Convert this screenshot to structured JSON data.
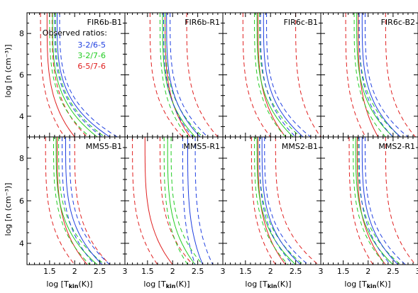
{
  "figure": {
    "ylabel": "log [n (cm⁻³)]",
    "xlabel": "log [Tkin(K)]",
    "xlabel_main": "log [T",
    "xlabel_sub": "kin",
    "xlabel_end": "(K)]"
  },
  "legend": {
    "title": "Observed ratios:",
    "entries": [
      {
        "label": "3-2/6-5",
        "color": "#1f3fe0"
      },
      {
        "label": "3-2/7-6",
        "color": "#22cc22"
      },
      {
        "label": "6-5/7-6",
        "color": "#e02020"
      }
    ]
  },
  "chart_data": {
    "type": "line",
    "xlim": [
      1.0,
      3.0
    ],
    "ylim": [
      3.0,
      9.0
    ],
    "xticks": [
      1.5,
      2.0,
      2.5,
      3.0
    ],
    "xtick_labels": [
      "1.5",
      "2",
      "2.5",
      "3"
    ],
    "yticks": [
      4,
      6,
      8
    ],
    "ytick_labels": [
      "4",
      "6",
      "8"
    ],
    "line_styles": {
      "observed": "solid",
      "error_bounds": "dashed"
    },
    "panels": [
      {
        "name": "FIR6b-B1",
        "xlim": [
          1.05,
          3.0
        ],
        "curves": [
          {
            "ratio": "6-5/7-6",
            "color": "#e02020",
            "style": "dashed",
            "x0": 1.32,
            "knee": 1.8
          },
          {
            "ratio": "6-5/7-6",
            "color": "#e02020",
            "style": "solid",
            "x0": 1.45,
            "knee": 2.0
          },
          {
            "ratio": "6-5/7-6",
            "color": "#e02020",
            "style": "dashed",
            "x0": 1.55,
            "knee": 2.25
          },
          {
            "ratio": "3-2/7-6",
            "color": "#22cc22",
            "style": "dashed",
            "x0": 1.5,
            "knee": 2.3
          },
          {
            "ratio": "3-2/7-6",
            "color": "#22cc22",
            "style": "solid",
            "x0": 1.56,
            "knee": 2.45
          },
          {
            "ratio": "3-2/7-6",
            "color": "#22cc22",
            "style": "dashed",
            "x0": 1.62,
            "knee": 2.6
          },
          {
            "ratio": "3-2/6-5",
            "color": "#1f3fe0",
            "style": "dashed",
            "x0": 1.6,
            "knee": 2.55
          },
          {
            "ratio": "3-2/6-5",
            "color": "#1f3fe0",
            "style": "solid",
            "x0": 1.65,
            "knee": 2.7
          },
          {
            "ratio": "3-2/6-5",
            "color": "#1f3fe0",
            "style": "dashed",
            "x0": 1.7,
            "knee": 2.85
          }
        ]
      },
      {
        "name": "FIR6b-R1",
        "xlim": [
          1.05,
          3.0
        ],
        "curves": [
          {
            "ratio": "6-5/7-6",
            "color": "#e02020",
            "style": "dashed",
            "x0": 1.55,
            "knee": 2.2
          },
          {
            "ratio": "6-5/7-6",
            "color": "#e02020",
            "style": "solid",
            "x0": 1.85,
            "knee": 2.35
          },
          {
            "ratio": "6-5/7-6",
            "color": "#e02020",
            "style": "dashed",
            "x0": 2.28,
            "knee": 2.9
          },
          {
            "ratio": "3-2/7-6",
            "color": "#22cc22",
            "style": "dashed",
            "x0": 1.75,
            "knee": 2.3
          },
          {
            "ratio": "3-2/7-6",
            "color": "#22cc22",
            "style": "solid",
            "x0": 1.8,
            "knee": 2.45
          },
          {
            "ratio": "3-2/7-6",
            "color": "#22cc22",
            "style": "dashed",
            "x0": 1.85,
            "knee": 2.6
          },
          {
            "ratio": "3-2/6-5",
            "color": "#1f3fe0",
            "style": "dashed",
            "x0": 1.82,
            "knee": 2.4
          },
          {
            "ratio": "3-2/6-5",
            "color": "#1f3fe0",
            "style": "solid",
            "x0": 1.88,
            "knee": 2.55
          },
          {
            "ratio": "3-2/6-5",
            "color": "#1f3fe0",
            "style": "dashed",
            "x0": 1.95,
            "knee": 2.7
          }
        ]
      },
      {
        "name": "FIR6c-B1",
        "xlim": [
          1.05,
          3.0
        ],
        "curves": [
          {
            "ratio": "6-5/7-6",
            "color": "#e02020",
            "style": "dashed",
            "x0": 1.45,
            "knee": 2.0
          },
          {
            "ratio": "6-5/7-6",
            "color": "#e02020",
            "style": "solid",
            "x0": 1.75,
            "knee": 2.3
          },
          {
            "ratio": "6-5/7-6",
            "color": "#e02020",
            "style": "dashed",
            "x0": 2.5,
            "knee": 3.0
          },
          {
            "ratio": "3-2/7-6",
            "color": "#22cc22",
            "style": "dashed",
            "x0": 1.68,
            "knee": 2.3
          },
          {
            "ratio": "3-2/7-6",
            "color": "#22cc22",
            "style": "solid",
            "x0": 1.73,
            "knee": 2.45
          },
          {
            "ratio": "3-2/7-6",
            "color": "#22cc22",
            "style": "dashed",
            "x0": 1.78,
            "knee": 2.6
          },
          {
            "ratio": "3-2/6-5",
            "color": "#1f3fe0",
            "style": "dashed",
            "x0": 1.8,
            "knee": 2.5
          },
          {
            "ratio": "3-2/6-5",
            "color": "#1f3fe0",
            "style": "solid",
            "x0": 1.86,
            "knee": 2.65
          },
          {
            "ratio": "3-2/6-5",
            "color": "#1f3fe0",
            "style": "dashed",
            "x0": 1.92,
            "knee": 2.8
          }
        ]
      },
      {
        "name": "FIR6c-B2",
        "xlim": [
          1.05,
          3.0
        ],
        "curves": [
          {
            "ratio": "6-5/7-6",
            "color": "#e02020",
            "style": "dashed",
            "x0": 1.55,
            "knee": 1.95
          },
          {
            "ratio": "6-5/7-6",
            "color": "#e02020",
            "style": "solid",
            "x0": 1.8,
            "knee": 2.2
          },
          {
            "ratio": "6-5/7-6",
            "color": "#e02020",
            "style": "dashed",
            "x0": 2.35,
            "knee": 2.95
          },
          {
            "ratio": "3-2/7-6",
            "color": "#22cc22",
            "style": "dashed",
            "x0": 1.72,
            "knee": 2.35
          },
          {
            "ratio": "3-2/7-6",
            "color": "#22cc22",
            "style": "solid",
            "x0": 1.77,
            "knee": 2.5
          },
          {
            "ratio": "3-2/7-6",
            "color": "#22cc22",
            "style": "dashed",
            "x0": 1.82,
            "knee": 2.65
          },
          {
            "ratio": "3-2/6-5",
            "color": "#1f3fe0",
            "style": "dashed",
            "x0": 1.82,
            "knee": 2.5
          },
          {
            "ratio": "3-2/6-5",
            "color": "#1f3fe0",
            "style": "solid",
            "x0": 1.88,
            "knee": 2.65
          },
          {
            "ratio": "3-2/6-5",
            "color": "#1f3fe0",
            "style": "dashed",
            "x0": 1.94,
            "knee": 2.8
          }
        ]
      },
      {
        "name": "MMS5-B1",
        "xlim": [
          1.05,
          3.0
        ],
        "curves": [
          {
            "ratio": "6-5/7-6",
            "color": "#e02020",
            "style": "dashed",
            "x0": 1.42,
            "knee": 2.0
          },
          {
            "ratio": "6-5/7-6",
            "color": "#e02020",
            "style": "solid",
            "x0": 1.65,
            "knee": 2.25
          },
          {
            "ratio": "6-5/7-6",
            "color": "#e02020",
            "style": "dashed",
            "x0": 2.0,
            "knee": 2.7
          },
          {
            "ratio": "3-2/7-6",
            "color": "#22cc22",
            "style": "dashed",
            "x0": 1.58,
            "knee": 2.3
          },
          {
            "ratio": "3-2/7-6",
            "color": "#22cc22",
            "style": "solid",
            "x0": 1.63,
            "knee": 2.45
          },
          {
            "ratio": "3-2/7-6",
            "color": "#22cc22",
            "style": "dashed",
            "x0": 1.68,
            "knee": 2.6
          },
          {
            "ratio": "3-2/6-5",
            "color": "#1f3fe0",
            "style": "dashed",
            "x0": 1.75,
            "knee": 2.4
          },
          {
            "ratio": "3-2/6-5",
            "color": "#1f3fe0",
            "style": "solid",
            "x0": 1.82,
            "knee": 2.55
          },
          {
            "ratio": "3-2/6-5",
            "color": "#1f3fe0",
            "style": "dashed",
            "x0": 1.9,
            "knee": 2.7
          }
        ]
      },
      {
        "name": "MMS5-R1",
        "xlim": [
          1.05,
          3.0
        ],
        "curves": [
          {
            "ratio": "6-5/7-6",
            "color": "#e02020",
            "style": "dashed",
            "x0": 1.2,
            "knee": 1.7
          },
          {
            "ratio": "6-5/7-6",
            "color": "#e02020",
            "style": "solid",
            "x0": 1.45,
            "knee": 2.0
          },
          {
            "ratio": "6-5/7-6",
            "color": "#e02020",
            "style": "dashed",
            "x0": 1.75,
            "knee": 2.4
          },
          {
            "ratio": "3-2/7-6",
            "color": "#22cc22",
            "style": "dashed",
            "x0": 1.83,
            "knee": 2.3
          },
          {
            "ratio": "3-2/7-6",
            "color": "#22cc22",
            "style": "solid",
            "x0": 1.9,
            "knee": 2.45
          },
          {
            "ratio": "3-2/7-6",
            "color": "#22cc22",
            "style": "dashed",
            "x0": 1.97,
            "knee": 2.6
          },
          {
            "ratio": "3-2/6-5",
            "color": "#1f3fe0",
            "style": "dashed",
            "x0": 2.2,
            "knee": 2.45
          },
          {
            "ratio": "3-2/6-5",
            "color": "#1f3fe0",
            "style": "solid",
            "x0": 2.3,
            "knee": 2.6
          },
          {
            "ratio": "3-2/6-5",
            "color": "#1f3fe0",
            "style": "dashed",
            "x0": 2.45,
            "knee": 2.8
          }
        ]
      },
      {
        "name": "MMS2-B1",
        "xlim": [
          1.05,
          3.0
        ],
        "curves": [
          {
            "ratio": "6-5/7-6",
            "color": "#e02020",
            "style": "dashed",
            "x0": 1.62,
            "knee": 2.1
          },
          {
            "ratio": "6-5/7-6",
            "color": "#e02020",
            "style": "solid",
            "x0": 1.75,
            "knee": 2.3
          },
          {
            "ratio": "6-5/7-6",
            "color": "#e02020",
            "style": "dashed",
            "x0": 2.1,
            "knee": 2.95
          },
          {
            "ratio": "3-2/7-6",
            "color": "#22cc22",
            "style": "dashed",
            "x0": 1.68,
            "knee": 2.35
          },
          {
            "ratio": "3-2/7-6",
            "color": "#22cc22",
            "style": "solid",
            "x0": 1.73,
            "knee": 2.5
          },
          {
            "ratio": "3-2/7-6",
            "color": "#22cc22",
            "style": "dashed",
            "x0": 1.78,
            "knee": 2.65
          },
          {
            "ratio": "3-2/6-5",
            "color": "#1f3fe0",
            "style": "dashed",
            "x0": 1.78,
            "knee": 2.45
          },
          {
            "ratio": "3-2/6-5",
            "color": "#1f3fe0",
            "style": "solid",
            "x0": 1.83,
            "knee": 2.6
          },
          {
            "ratio": "3-2/6-5",
            "color": "#1f3fe0",
            "style": "dashed",
            "x0": 1.88,
            "knee": 2.75
          }
        ]
      },
      {
        "name": "MMS2-R1",
        "xlim": [
          1.05,
          3.0
        ],
        "curves": [
          {
            "ratio": "6-5/7-6",
            "color": "#e02020",
            "style": "dashed",
            "x0": 1.62,
            "knee": 2.1
          },
          {
            "ratio": "6-5/7-6",
            "color": "#e02020",
            "style": "solid",
            "x0": 1.78,
            "knee": 2.35
          },
          {
            "ratio": "6-5/7-6",
            "color": "#e02020",
            "style": "dashed",
            "x0": 2.35,
            "knee": 2.95
          },
          {
            "ratio": "3-2/7-6",
            "color": "#22cc22",
            "style": "dashed",
            "x0": 1.7,
            "knee": 2.35
          },
          {
            "ratio": "3-2/7-6",
            "color": "#22cc22",
            "style": "solid",
            "x0": 1.75,
            "knee": 2.5
          },
          {
            "ratio": "3-2/7-6",
            "color": "#22cc22",
            "style": "dashed",
            "x0": 1.8,
            "knee": 2.65
          },
          {
            "ratio": "3-2/6-5",
            "color": "#1f3fe0",
            "style": "dashed",
            "x0": 1.82,
            "knee": 2.45
          },
          {
            "ratio": "3-2/6-5",
            "color": "#1f3fe0",
            "style": "solid",
            "x0": 1.88,
            "knee": 2.6
          },
          {
            "ratio": "3-2/6-5",
            "color": "#1f3fe0",
            "style": "dashed",
            "x0": 1.94,
            "knee": 2.75
          }
        ]
      }
    ]
  }
}
